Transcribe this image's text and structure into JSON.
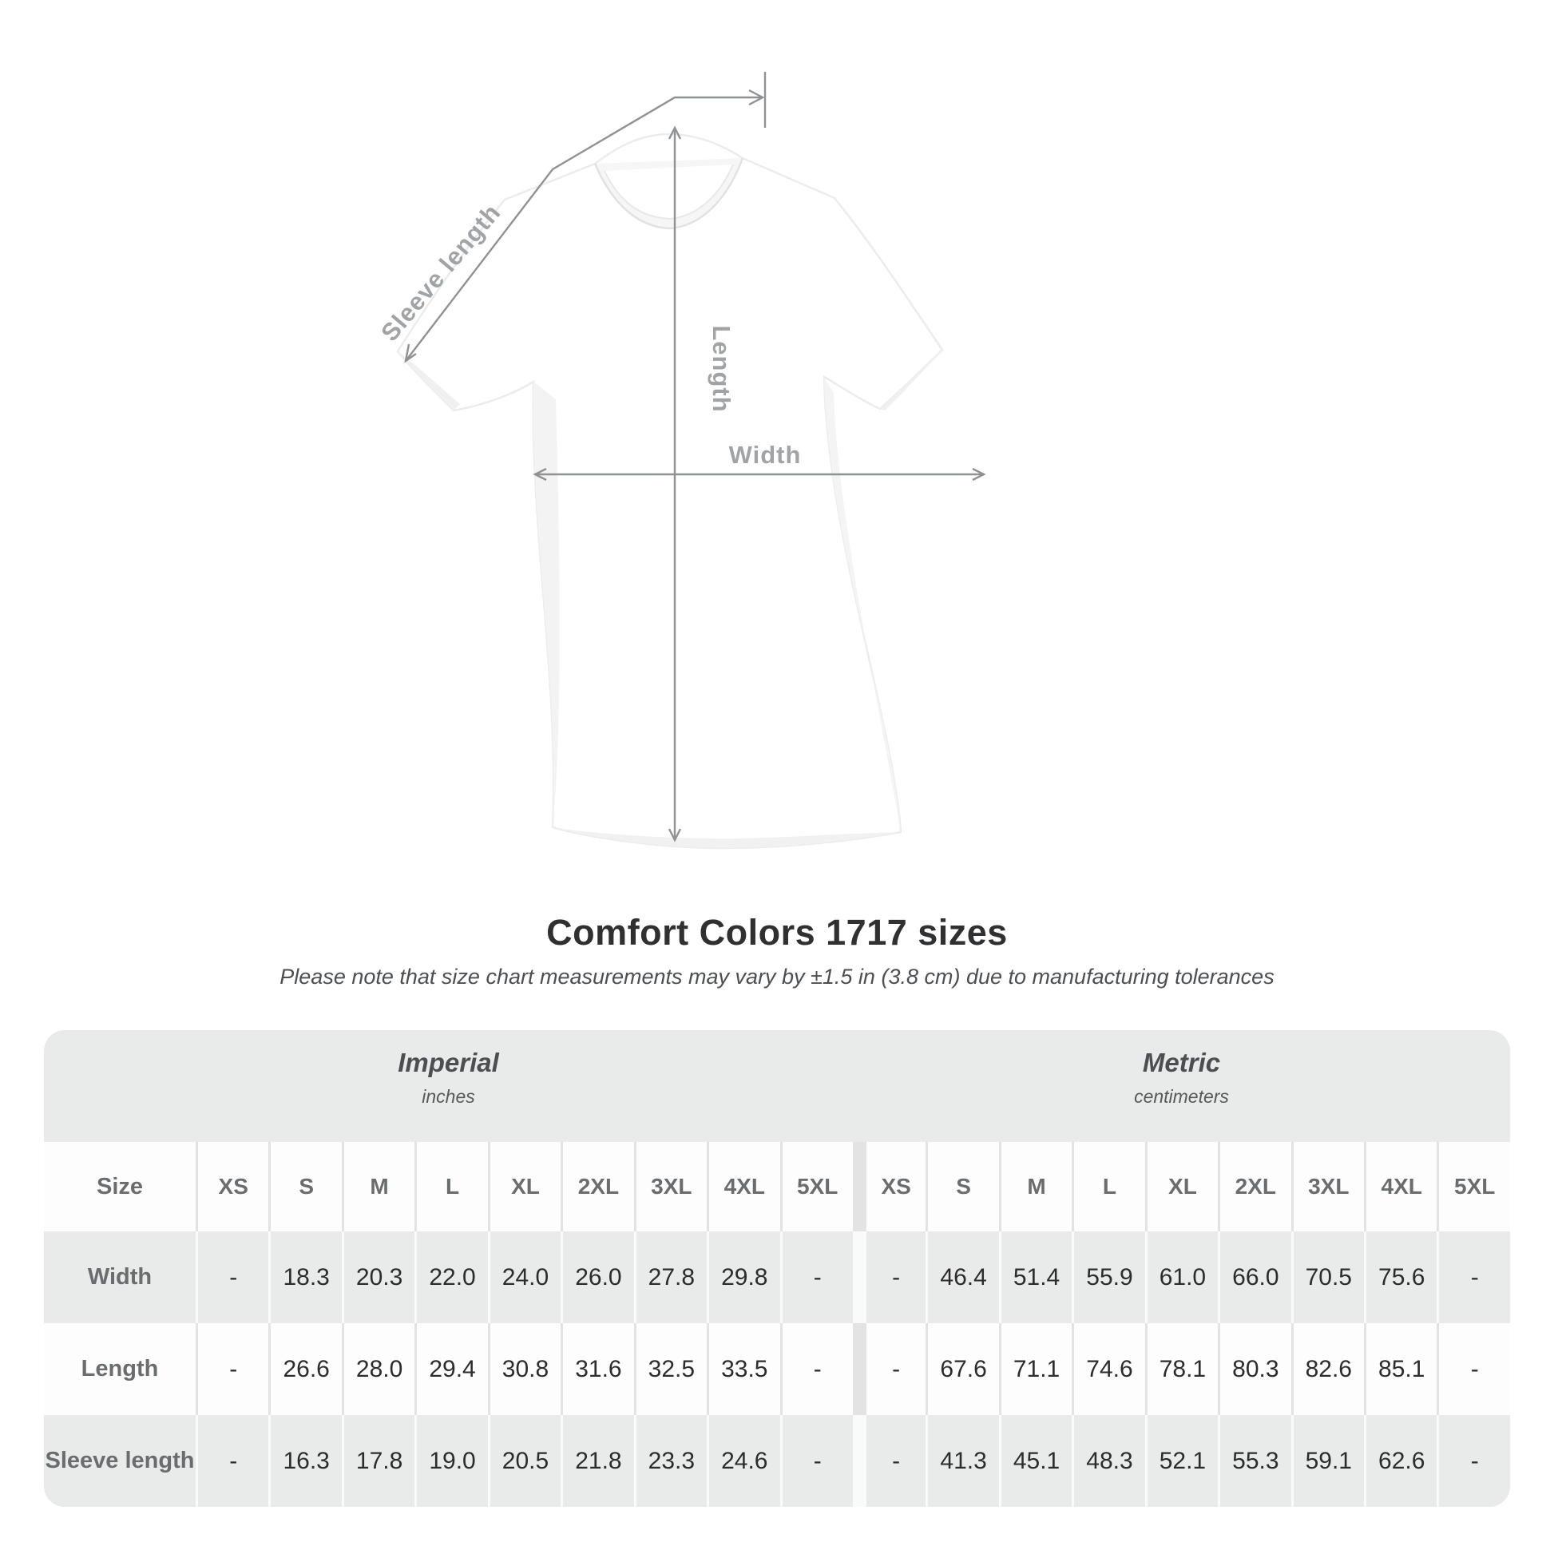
{
  "diagram": {
    "labels": {
      "sleeve_length": "Sleeve length",
      "length": "Length",
      "width": "Width"
    }
  },
  "title": "Comfort Colors 1717 sizes",
  "subtitle": "Please note that size chart measurements may vary by ±1.5 in (3.8 cm) due to manufacturing tolerances",
  "table": {
    "size_header": "Size",
    "unit_groups": [
      {
        "label": "Imperial",
        "sublabel": "inches"
      },
      {
        "label": "Metric",
        "sublabel": "centimeters"
      }
    ],
    "sizes": [
      "XS",
      "S",
      "M",
      "L",
      "XL",
      "2XL",
      "3XL",
      "4XL",
      "5XL"
    ],
    "rows": [
      {
        "label": "Width",
        "imperial": [
          "-",
          "18.3",
          "20.3",
          "22.0",
          "24.0",
          "26.0",
          "27.8",
          "29.8",
          "-"
        ],
        "metric": [
          "-",
          "46.4",
          "51.4",
          "55.9",
          "61.0",
          "66.0",
          "70.5",
          "75.6",
          "-"
        ]
      },
      {
        "label": "Length",
        "imperial": [
          "-",
          "26.6",
          "28.0",
          "29.4",
          "30.8",
          "31.6",
          "32.5",
          "33.5",
          "-"
        ],
        "metric": [
          "-",
          "67.6",
          "71.1",
          "74.6",
          "78.1",
          "80.3",
          "82.6",
          "85.1",
          "-"
        ]
      },
      {
        "label": "Sleeve length",
        "imperial": [
          "-",
          "16.3",
          "17.8",
          "19.0",
          "20.5",
          "21.8",
          "23.3",
          "24.6",
          "-"
        ],
        "metric": [
          "-",
          "41.3",
          "45.1",
          "48.3",
          "52.1",
          "55.3",
          "59.1",
          "62.6",
          "-"
        ]
      }
    ]
  },
  "colors": {
    "table_gray": "#e9eaea",
    "cell_white": "#fdfdfd",
    "annotation_line": "#8f9294",
    "annotation_text": "#a0a4a6",
    "heading_text": "#2e3032",
    "value_text": "#2c2c2c"
  }
}
